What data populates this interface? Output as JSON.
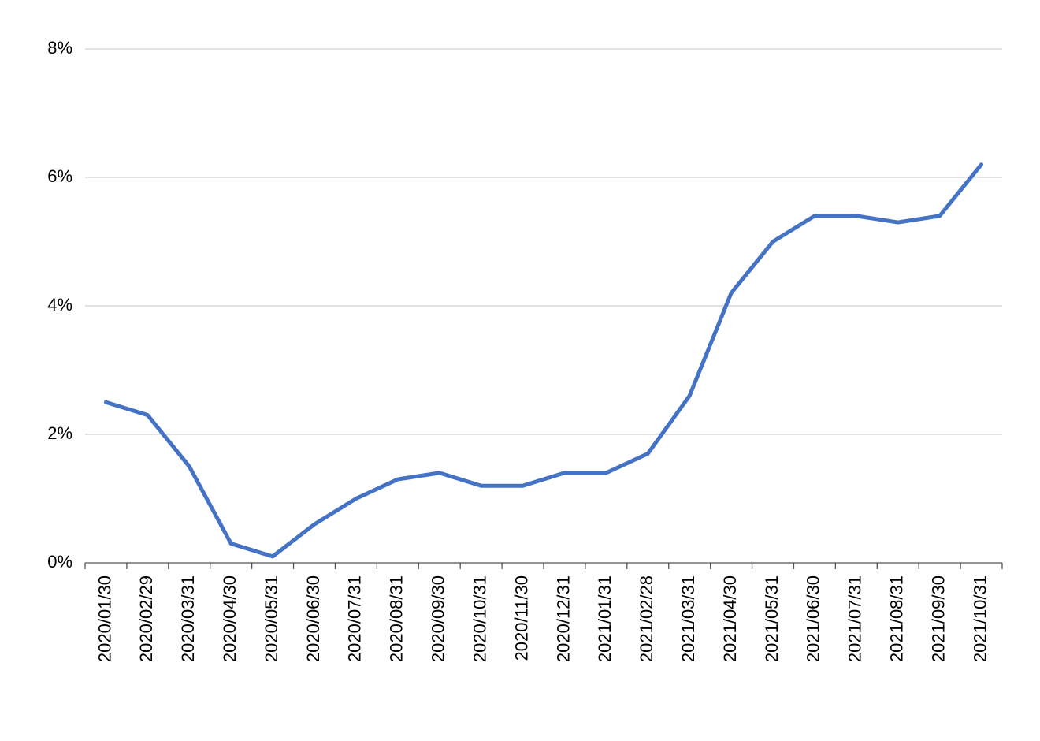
{
  "chart_data": {
    "type": "line",
    "categories": [
      "2020/01/30",
      "2020/02/29",
      "2020/03/31",
      "2020/04/30",
      "2020/05/31",
      "2020/06/30",
      "2020/07/31",
      "2020/08/31",
      "2020/09/30",
      "2020/10/31",
      "2020/11/30",
      "2020/12/31",
      "2021/01/31",
      "2021/02/28",
      "2021/03/31",
      "2021/04/30",
      "2021/05/31",
      "2021/06/30",
      "2021/07/31",
      "2021/08/31",
      "2021/09/30",
      "2021/10/31"
    ],
    "series": [
      {
        "color": "#4472c4",
        "values": [
          2.5,
          2.3,
          1.5,
          0.3,
          0.1,
          0.6,
          1.0,
          1.3,
          1.4,
          1.2,
          1.2,
          1.4,
          1.4,
          1.7,
          2.6,
          4.2,
          5.0,
          5.4,
          5.4,
          5.3,
          5.4,
          6.2
        ]
      }
    ],
    "ylim": [
      0,
      8
    ],
    "yticks": [
      {
        "value": 0,
        "label": "0%"
      },
      {
        "value": 2,
        "label": "2%"
      },
      {
        "value": 4,
        "label": "4%"
      },
      {
        "value": 6,
        "label": "6%"
      },
      {
        "value": 8,
        "label": "8%"
      }
    ],
    "grid": true
  }
}
